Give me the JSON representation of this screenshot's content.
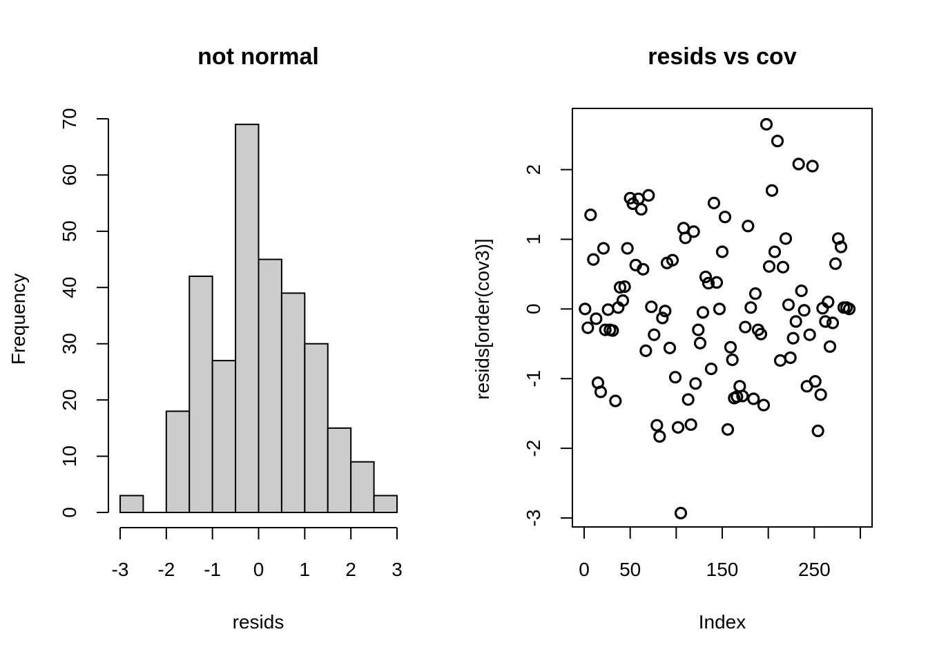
{
  "chart_data": [
    {
      "type": "bar",
      "title": "not normal",
      "xlabel": "resids",
      "ylabel": "Frequency",
      "bins": [
        {
          "from": -3.0,
          "to": -2.5,
          "count": 3
        },
        {
          "from": -2.5,
          "to": -2.0,
          "count": 0
        },
        {
          "from": -2.0,
          "to": -1.5,
          "count": 18
        },
        {
          "from": -1.5,
          "to": -1.0,
          "count": 42
        },
        {
          "from": -1.0,
          "to": -0.5,
          "count": 27
        },
        {
          "from": -0.5,
          "to": 0.0,
          "count": 69
        },
        {
          "from": 0.0,
          "to": 0.5,
          "count": 45
        },
        {
          "from": 0.5,
          "to": 1.0,
          "count": 39
        },
        {
          "from": 1.0,
          "to": 1.5,
          "count": 30
        },
        {
          "from": 1.5,
          "to": 2.0,
          "count": 15
        },
        {
          "from": 2.0,
          "to": 2.5,
          "count": 9
        },
        {
          "from": 2.5,
          "to": 3.0,
          "count": 3
        }
      ],
      "xlim": [
        -3,
        3
      ],
      "ylim": [
        0,
        70
      ],
      "xticks": [
        -3,
        -2,
        -1,
        0,
        1,
        2,
        3
      ],
      "yticks": [
        0,
        10,
        20,
        30,
        40,
        50,
        60,
        70
      ]
    },
    {
      "type": "scatter",
      "title": "resids vs cov",
      "xlabel": "Index",
      "ylabel": "resids[order(cov3)]",
      "xlim": [
        0,
        300
      ],
      "ylim": [
        -3,
        2.65
      ],
      "xticks": [
        0,
        50,
        150,
        250
      ],
      "yticks": [
        -3,
        -2,
        -1,
        0,
        1,
        2
      ],
      "points": [
        [
          1,
          0.0
        ],
        [
          4,
          -0.27
        ],
        [
          7,
          1.35
        ],
        [
          10,
          0.71
        ],
        [
          13,
          -0.14
        ],
        [
          15,
          -1.06
        ],
        [
          18,
          -1.19
        ],
        [
          21,
          0.87
        ],
        [
          23,
          -0.3
        ],
        [
          26,
          -0.01
        ],
        [
          28,
          -0.3
        ],
        [
          31,
          -0.31
        ],
        [
          34,
          -1.32
        ],
        [
          37,
          0.02
        ],
        [
          39,
          0.31
        ],
        [
          42,
          0.12
        ],
        [
          44,
          0.32
        ],
        [
          47,
          0.87
        ],
        [
          50,
          1.59
        ],
        [
          53,
          1.51
        ],
        [
          56,
          0.63
        ],
        [
          59,
          1.58
        ],
        [
          62,
          1.43
        ],
        [
          64,
          0.57
        ],
        [
          67,
          -0.6
        ],
        [
          70,
          1.63
        ],
        [
          73,
          0.03
        ],
        [
          76,
          -0.37
        ],
        [
          79,
          -1.67
        ],
        [
          82,
          -1.83
        ],
        [
          85,
          -0.13
        ],
        [
          88,
          -0.03
        ],
        [
          90,
          0.66
        ],
        [
          93,
          -0.56
        ],
        [
          96,
          0.7
        ],
        [
          99,
          -0.98
        ],
        [
          102,
          -1.7
        ],
        [
          105,
          -2.93
        ],
        [
          108,
          1.16
        ],
        [
          110,
          1.02
        ],
        [
          113,
          -1.3
        ],
        [
          116,
          -1.66
        ],
        [
          119,
          1.11
        ],
        [
          121,
          -1.07
        ],
        [
          124,
          -0.3
        ],
        [
          126,
          -0.49
        ],
        [
          129,
          -0.05
        ],
        [
          132,
          0.46
        ],
        [
          135,
          0.37
        ],
        [
          138,
          -0.86
        ],
        [
          141,
          1.52
        ],
        [
          144,
          0.38
        ],
        [
          147,
          0.0
        ],
        [
          150,
          0.82
        ],
        [
          153,
          1.32
        ],
        [
          156,
          -1.73
        ],
        [
          159,
          -0.55
        ],
        [
          161,
          -0.73
        ],
        [
          163,
          -1.28
        ],
        [
          166,
          -1.26
        ],
        [
          169,
          -1.11
        ],
        [
          172,
          -1.25
        ],
        [
          175,
          -0.26
        ],
        [
          178,
          1.19
        ],
        [
          181,
          0.02
        ],
        [
          184,
          -1.29
        ],
        [
          186,
          0.22
        ],
        [
          189,
          -0.3
        ],
        [
          192,
          -0.36
        ],
        [
          195,
          -1.38
        ],
        [
          198,
          2.65
        ],
        [
          201,
          0.61
        ],
        [
          204,
          1.7
        ],
        [
          207,
          0.82
        ],
        [
          210,
          2.41
        ],
        [
          213,
          -0.74
        ],
        [
          216,
          0.6
        ],
        [
          219,
          1.01
        ],
        [
          222,
          0.06
        ],
        [
          224,
          -0.7
        ],
        [
          227,
          -0.42
        ],
        [
          230,
          -0.18
        ],
        [
          233,
          2.08
        ],
        [
          236,
          0.26
        ],
        [
          239,
          -0.02
        ],
        [
          242,
          -1.11
        ],
        [
          245,
          -0.37
        ],
        [
          248,
          2.05
        ],
        [
          251,
          -1.04
        ],
        [
          254,
          -1.75
        ],
        [
          257,
          -1.23
        ],
        [
          259,
          0.01
        ],
        [
          262,
          -0.18
        ],
        [
          265,
          0.1
        ],
        [
          267,
          -0.54
        ],
        [
          270,
          -0.2
        ],
        [
          273,
          0.65
        ],
        [
          276,
          1.01
        ],
        [
          279,
          0.89
        ],
        [
          282,
          0.02
        ],
        [
          285,
          0.02
        ],
        [
          288,
          0.0
        ]
      ]
    }
  ]
}
